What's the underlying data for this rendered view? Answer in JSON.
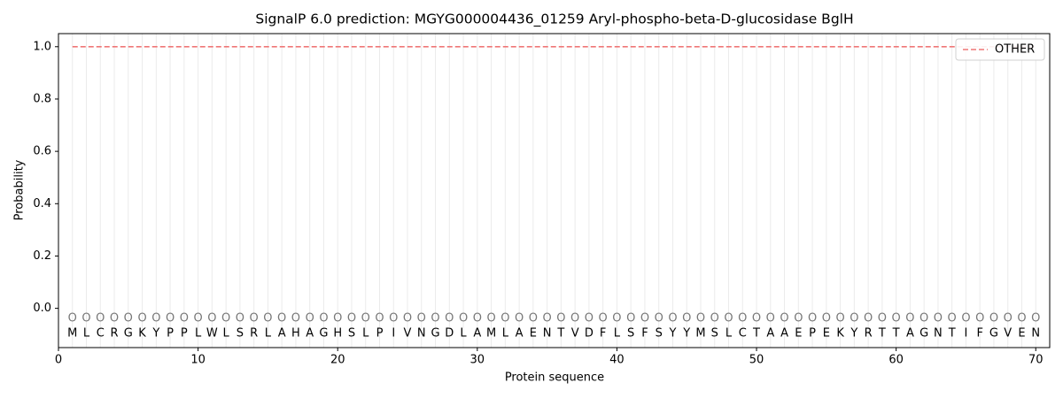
{
  "chart_data": {
    "type": "line",
    "title": "SignalP 6.0 prediction: MGYG000004436_01259 Aryl-phospho-beta-D-glucosidase BglH",
    "xlabel": "Protein sequence",
    "ylabel": "Probability",
    "x": [
      1,
      2,
      3,
      4,
      5,
      6,
      7,
      8,
      9,
      10,
      11,
      12,
      13,
      14,
      15,
      16,
      17,
      18,
      19,
      20,
      21,
      22,
      23,
      24,
      25,
      26,
      27,
      28,
      29,
      30,
      31,
      32,
      33,
      34,
      35,
      36,
      37,
      38,
      39,
      40,
      41,
      42,
      43,
      44,
      45,
      46,
      47,
      48,
      49,
      50,
      51,
      52,
      53,
      54,
      55,
      56,
      57,
      58,
      59,
      60,
      61,
      62,
      63,
      64,
      65,
      66,
      67,
      68,
      69,
      70
    ],
    "sequence": [
      "M",
      "L",
      "C",
      "R",
      "G",
      "K",
      "Y",
      "P",
      "P",
      "L",
      "W",
      "L",
      "S",
      "R",
      "L",
      "A",
      "H",
      "A",
      "G",
      "H",
      "S",
      "L",
      "P",
      "I",
      "V",
      "N",
      "G",
      "D",
      "L",
      "A",
      "M",
      "L",
      "A",
      "E",
      "N",
      "T",
      "V",
      "D",
      "F",
      "L",
      "S",
      "F",
      "S",
      "Y",
      "Y",
      "M",
      "S",
      "L",
      "C",
      "T",
      "A",
      "A",
      "E",
      "P",
      "E",
      "K",
      "Y",
      "R",
      "T",
      "T",
      "A",
      "G",
      "N",
      "T",
      "I",
      "F",
      "G",
      "V",
      "E",
      "N"
    ],
    "region_labels": [
      "O",
      "O",
      "O",
      "O",
      "O",
      "O",
      "O",
      "O",
      "O",
      "O",
      "O",
      "O",
      "O",
      "O",
      "O",
      "O",
      "O",
      "O",
      "O",
      "O",
      "O",
      "O",
      "O",
      "O",
      "O",
      "O",
      "O",
      "O",
      "O",
      "O",
      "O",
      "O",
      "O",
      "O",
      "O",
      "O",
      "O",
      "O",
      "O",
      "O",
      "O",
      "O",
      "O",
      "O",
      "O",
      "O",
      "O",
      "O",
      "O",
      "O",
      "O",
      "O",
      "O",
      "O",
      "O",
      "O",
      "O",
      "O",
      "O",
      "O",
      "O",
      "O",
      "O",
      "O",
      "O",
      "O",
      "O",
      "O",
      "O",
      "O"
    ],
    "series": [
      {
        "name": "OTHER",
        "color": "#ef7777",
        "dashed": true,
        "values": [
          1,
          1,
          1,
          1,
          1,
          1,
          1,
          1,
          1,
          1,
          1,
          1,
          1,
          1,
          1,
          1,
          1,
          1,
          1,
          1,
          1,
          1,
          1,
          1,
          1,
          1,
          1,
          1,
          1,
          1,
          1,
          1,
          1,
          1,
          1,
          1,
          1,
          1,
          1,
          1,
          1,
          1,
          1,
          1,
          1,
          1,
          1,
          1,
          1,
          1,
          1,
          1,
          1,
          1,
          1,
          1,
          1,
          1,
          1,
          1,
          1,
          1,
          1,
          1,
          1,
          1,
          1,
          1,
          1,
          1
        ]
      }
    ],
    "xlim": [
      0,
      71
    ],
    "ylim": [
      -0.15,
      1.05
    ],
    "xticks": [
      0,
      10,
      20,
      30,
      40,
      50,
      60,
      70
    ],
    "yticks": [
      {
        "value": 0,
        "label": "0.0"
      },
      0.2,
      0.4,
      0.6,
      0.8,
      {
        "value": 1,
        "label": "1.0"
      }
    ],
    "legend": "upper right"
  }
}
